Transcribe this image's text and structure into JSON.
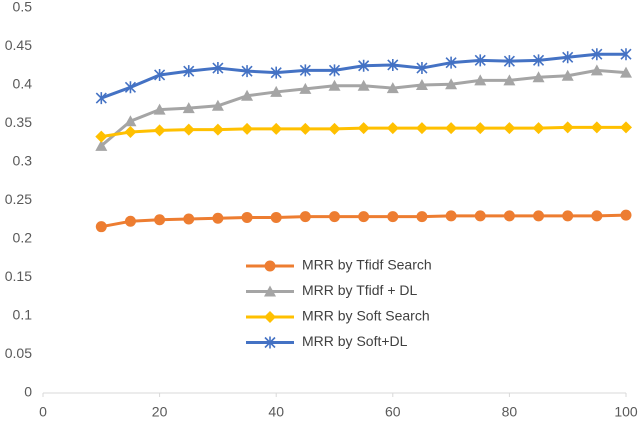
{
  "chart_data": {
    "type": "line",
    "x": [
      10,
      15,
      20,
      25,
      30,
      35,
      40,
      45,
      50,
      55,
      60,
      65,
      70,
      75,
      80,
      85,
      90,
      95,
      100
    ],
    "series": [
      {
        "name": "MRR by Tfidf Search",
        "color": "#ed7d31",
        "marker": "circle",
        "values": [
          0.216,
          0.223,
          0.225,
          0.226,
          0.227,
          0.228,
          0.228,
          0.229,
          0.229,
          0.229,
          0.229,
          0.229,
          0.23,
          0.23,
          0.23,
          0.23,
          0.23,
          0.23,
          0.231
        ]
      },
      {
        "name": "MRR by Tfidf + DL",
        "color": "#a5a5a5",
        "marker": "triangle",
        "values": [
          0.321,
          0.353,
          0.368,
          0.37,
          0.373,
          0.386,
          0.391,
          0.395,
          0.399,
          0.399,
          0.396,
          0.4,
          0.401,
          0.406,
          0.406,
          0.41,
          0.412,
          0.419,
          0.416
        ]
      },
      {
        "name": "MRR by Soft Search",
        "color": "#ffc000",
        "marker": "diamond",
        "values": [
          0.333,
          0.339,
          0.341,
          0.342,
          0.342,
          0.343,
          0.343,
          0.343,
          0.343,
          0.344,
          0.344,
          0.344,
          0.344,
          0.344,
          0.344,
          0.344,
          0.345,
          0.345,
          0.345
        ]
      },
      {
        "name": "MRR by Soft+DL",
        "color": "#4472c4",
        "marker": "star",
        "values": [
          0.383,
          0.397,
          0.413,
          0.418,
          0.422,
          0.418,
          0.416,
          0.419,
          0.419,
          0.425,
          0.426,
          0.422,
          0.429,
          0.432,
          0.431,
          0.432,
          0.436,
          0.44,
          0.44
        ]
      }
    ],
    "xlim": [
      0,
      100
    ],
    "xticks": [
      0,
      20,
      40,
      60,
      80,
      100
    ],
    "ylim": [
      0,
      0.5
    ],
    "yticks": [
      0,
      0.05,
      0.1,
      0.15,
      0.2,
      0.25,
      0.3,
      0.35,
      0.4,
      0.45,
      0.5
    ],
    "grid": false
  }
}
